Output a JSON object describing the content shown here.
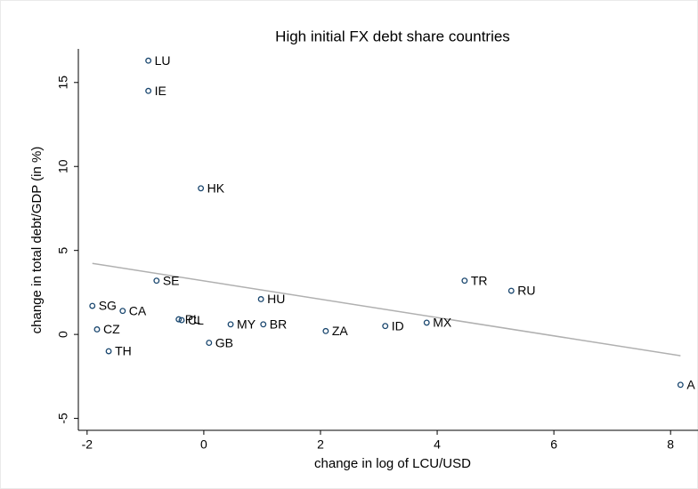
{
  "chart_data": {
    "type": "scatter",
    "title": "High initial FX debt share countries",
    "x_label": "change in log of LCU/USD",
    "y_label": "change in total debt/GDP (in %)",
    "xlim": [
      -2.15,
      8.47
    ],
    "ylim": [
      -5.71,
      17.0
    ],
    "xticks": [
      -2,
      0,
      2,
      4,
      6,
      8
    ],
    "yticks": [
      -5,
      0,
      5,
      10,
      15
    ],
    "color": "#1a476f",
    "points": {
      "labels": [
        "LU",
        "IE",
        "HK",
        "SE",
        "TR",
        "RU",
        "HU",
        "SG",
        "CA",
        "PL",
        "CL",
        "MY",
        "BR",
        "MX",
        "ID",
        "ZA",
        "CZ",
        "GB",
        "TH",
        "A"
      ],
      "x": [
        -0.95,
        -0.95,
        -0.05,
        -0.81,
        4.47,
        5.27,
        0.98,
        -1.91,
        -1.39,
        -0.43,
        -0.38,
        0.46,
        1.02,
        3.82,
        3.11,
        2.09,
        -1.83,
        0.09,
        -1.63,
        8.17
      ],
      "y": [
        16.3,
        14.5,
        8.7,
        3.2,
        3.2,
        2.6,
        2.1,
        1.7,
        1.4,
        0.9,
        0.85,
        0.6,
        0.6,
        0.7,
        0.5,
        0.2,
        0.3,
        -0.5,
        -1.0,
        -3.0
      ]
    },
    "fit": {
      "color": "#b0b0b0",
      "x": [
        -1.91,
        8.17
      ],
      "y": [
        4.23,
        -1.27
      ]
    }
  }
}
